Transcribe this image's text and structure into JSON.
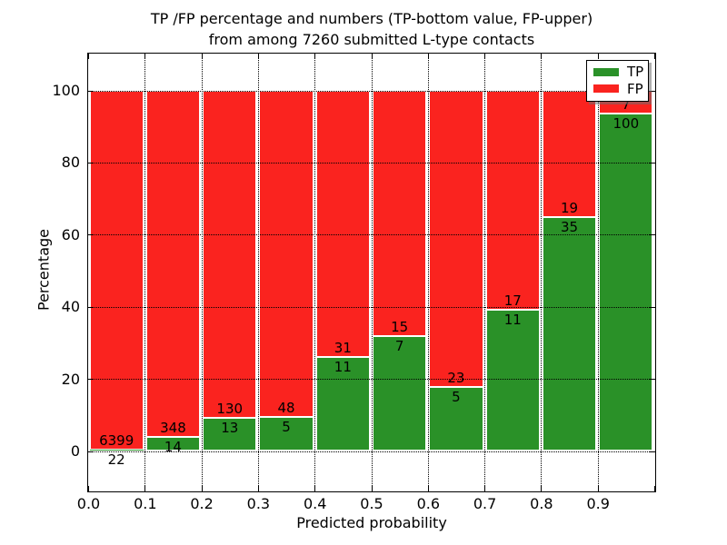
{
  "chart_data": {
    "type": "bar",
    "stacking": "percent",
    "title_line1": "TP /FP percentage and numbers (TP-bottom value, FP-upper)",
    "title_line2": "from among 7260 submitted L-type contacts",
    "xlabel": "Predicted probability",
    "ylabel": "Percentage",
    "total_submitted": 7260,
    "categories": [
      "0.0-0.1",
      "0.1-0.2",
      "0.2-0.3",
      "0.3-0.4",
      "0.4-0.5",
      "0.5-0.6",
      "0.6-0.7",
      "0.7-0.8",
      "0.8-0.9",
      "0.9-1.0"
    ],
    "series": [
      {
        "name": "TP",
        "color": "#2a9128",
        "values": [
          22,
          14,
          13,
          5,
          11,
          7,
          5,
          11,
          35,
          100
        ]
      },
      {
        "name": "FP",
        "color": "#fa231f",
        "values": [
          6399,
          348,
          130,
          48,
          31,
          15,
          23,
          17,
          19,
          7
        ]
      }
    ],
    "x_tick_labels": [
      "0.0",
      "0.1",
      "0.2",
      "0.3",
      "0.4",
      "0.5",
      "0.6",
      "0.7",
      "0.8",
      "0.9"
    ],
    "y_ticks": [
      0,
      20,
      40,
      60,
      80,
      100
    ],
    "xlim": [
      0.0,
      1.0
    ],
    "grid": "dotted",
    "legend_position": "upper right",
    "legend": [
      {
        "label": "TP",
        "color": "#2a9128"
      },
      {
        "label": "FP",
        "color": "#fa231f"
      }
    ]
  }
}
